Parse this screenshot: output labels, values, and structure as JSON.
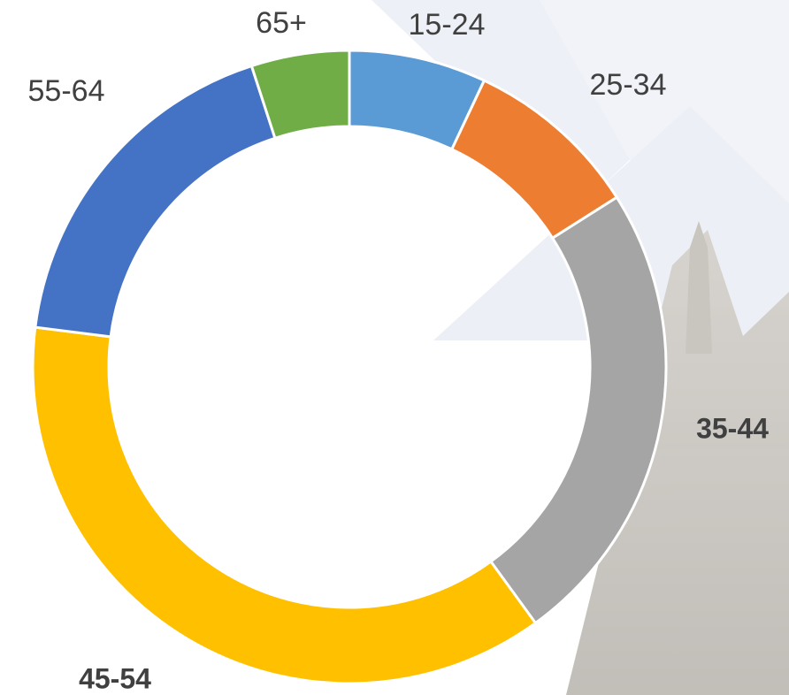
{
  "chart_data": {
    "type": "donut",
    "categories": [
      "15-24",
      "25-34",
      "35-44",
      "45-54",
      "55-64",
      "65+"
    ],
    "values": [
      7,
      9,
      24,
      37,
      18,
      5
    ],
    "colors": [
      "#5b9bd5",
      "#ed7d31",
      "#a5a5a5",
      "#ffc000",
      "#4472c4",
      "#70ad47"
    ]
  }
}
